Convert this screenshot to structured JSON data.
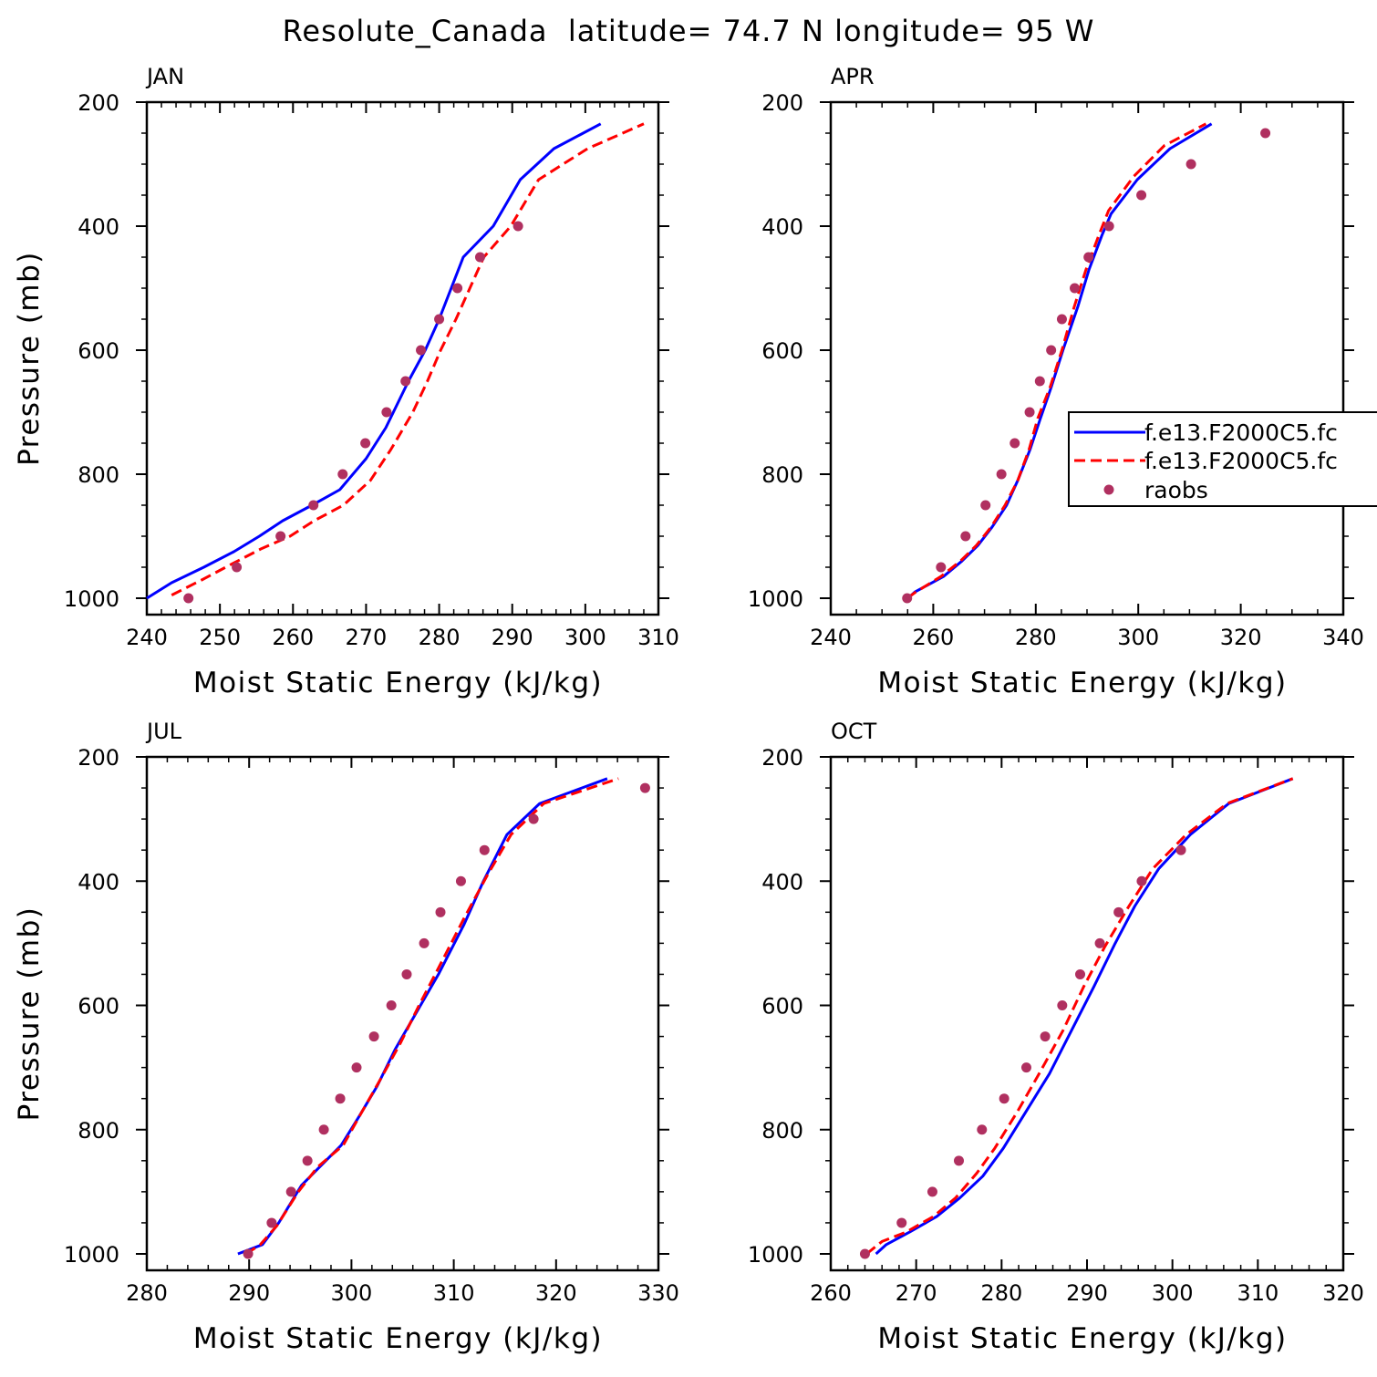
{
  "figure_title": "Resolute_Canada  latitude= 74.7 N longitude= 95 W",
  "colors": {
    "series1": "#0000ff",
    "series2": "#ff0000",
    "raobs": "#b03060"
  },
  "legend": {
    "entries": [
      "f.e13.F2000C5.fc",
      "f.e13.F2000C5.fc",
      "raobs"
    ],
    "placement": "right of APR panel, clipped by page edge"
  },
  "chart_data": [
    {
      "type": "line",
      "panel_label": "JAN",
      "xlabel": "Moist Static Energy (kJ/kg)",
      "ylabel": "Pressure (mb)",
      "xlim": [
        240,
        310
      ],
      "ylim": [
        1000,
        200
      ],
      "y_inverted": true,
      "xticks": [
        240,
        250,
        260,
        270,
        280,
        290,
        300,
        310
      ],
      "yticks": [
        200,
        400,
        600,
        800,
        1000
      ],
      "series": [
        {
          "style": "solid",
          "x": [
            240,
            243.4,
            247.8,
            251.9,
            255.4,
            258.6,
            262.6,
            266.4,
            270,
            272.7,
            275.8,
            278.1,
            280,
            283.3,
            287.4,
            291.1,
            295.7,
            302.1
          ],
          "y": [
            1000,
            975,
            950,
            925,
            900,
            875,
            850,
            825,
            775,
            725,
            650,
            600,
            550,
            450,
            400,
            325,
            275,
            235
          ]
        },
        {
          "style": "dashed",
          "x": [
            243.4,
            247.6,
            251.6,
            255.7,
            259.6,
            262.9,
            266.9,
            270.6,
            273.4,
            276.4,
            278.4,
            280.2,
            282.3,
            286.1,
            289.8,
            293.6,
            300.3,
            308
          ],
          "y": [
            995,
            970,
            945,
            920,
            900,
            875,
            850,
            810,
            760,
            700,
            650,
            600,
            550,
            450,
            400,
            325,
            275,
            235
          ]
        },
        {
          "style": "markers",
          "x": [
            245.7,
            252.3,
            258.3,
            262.8,
            266.8,
            269.9,
            272.8,
            275.4,
            277.5,
            280,
            282.5,
            285.6,
            290.8
          ],
          "y": [
            1000,
            950,
            900,
            850,
            800,
            750,
            700,
            650,
            600,
            550,
            500,
            450,
            400
          ]
        }
      ]
    },
    {
      "type": "line",
      "panel_label": "APR",
      "xlabel": "Moist Static Energy (kJ/kg)",
      "ylabel": "",
      "xlim": [
        240,
        340
      ],
      "ylim": [
        1000,
        200
      ],
      "y_inverted": true,
      "xticks": [
        240,
        260,
        280,
        300,
        320,
        340
      ],
      "yticks": [
        200,
        400,
        600,
        800,
        1000
      ],
      "series": [
        {
          "style": "solid",
          "x": [
            254.4,
            256.4,
            262,
            265.6,
            268.7,
            271.5,
            274.3,
            276.5,
            278.9,
            280.9,
            283,
            285.3,
            288.2,
            290.4,
            292.9,
            294.7,
            299.8,
            306.2,
            314.3
          ],
          "y": [
            1005,
            990,
            965,
            940,
            915,
            885,
            850,
            810,
            760,
            710,
            660,
            600,
            530,
            470,
            415,
            380,
            325,
            275,
            235
          ]
        },
        {
          "style": "dashed",
          "x": [
            254.9,
            256.6,
            261.5,
            265.3,
            268.4,
            271.3,
            274,
            276.5,
            278.7,
            280.4,
            282.8,
            285.1,
            287.5,
            289.8,
            292.3,
            294.2,
            299.1,
            305.1,
            313.2
          ],
          "y": [
            1000,
            990,
            965,
            940,
            915,
            885,
            850,
            810,
            760,
            710,
            660,
            600,
            530,
            470,
            415,
            375,
            320,
            270,
            235
          ]
        },
        {
          "style": "markers",
          "x": [
            254.9,
            261.5,
            266.3,
            270.2,
            273.3,
            275.9,
            278.8,
            280.8,
            283,
            285.1,
            287.6,
            290.3,
            294.3,
            300.6,
            310.3,
            324.8
          ],
          "y": [
            1000,
            950,
            900,
            850,
            800,
            750,
            700,
            650,
            600,
            550,
            500,
            450,
            400,
            350,
            300,
            250
          ]
        }
      ]
    },
    {
      "type": "line",
      "panel_label": "JUL",
      "xlabel": "Moist Static Energy (kJ/kg)",
      "ylabel": "Pressure (mb)",
      "xlim": [
        280,
        330
      ],
      "ylim": [
        1000,
        200
      ],
      "y_inverted": true,
      "xticks": [
        280,
        290,
        300,
        310,
        320,
        330
      ],
      "yticks": [
        200,
        400,
        600,
        800,
        1000
      ],
      "series": [
        {
          "style": "solid",
          "x": [
            288.9,
            291.3,
            292.9,
            295.1,
            296.9,
            299,
            300.7,
            302.5,
            304.3,
            306.4,
            308.5,
            311,
            312.9,
            315.2,
            318.4,
            325
          ],
          "y": [
            1000,
            985,
            950,
            890,
            860,
            825,
            780,
            730,
            670,
            610,
            550,
            470,
            400,
            325,
            275,
            235
          ]
        },
        {
          "style": "dashed",
          "x": [
            289.7,
            291.1,
            292.7,
            294.8,
            296.7,
            299.2,
            300.9,
            302.8,
            304.8,
            306.6,
            308.5,
            311,
            313.3,
            315.6,
            318.8,
            326.1
          ],
          "y": [
            1000,
            985,
            955,
            900,
            860,
            825,
            775,
            720,
            660,
            600,
            540,
            460,
            390,
            325,
            275,
            235
          ]
        },
        {
          "style": "markers",
          "x": [
            289.9,
            292.2,
            294.1,
            295.7,
            297.3,
            298.9,
            300.5,
            302.2,
            303.9,
            305.4,
            307.1,
            308.7,
            310.7,
            313,
            317.8,
            328.7
          ],
          "y": [
            1000,
            950,
            900,
            850,
            800,
            750,
            700,
            650,
            600,
            550,
            500,
            450,
            400,
            350,
            300,
            250
          ]
        }
      ]
    },
    {
      "type": "line",
      "panel_label": "OCT",
      "xlabel": "Moist Static Energy (kJ/kg)",
      "ylabel": "",
      "xlim": [
        260,
        320
      ],
      "ylim": [
        1000,
        200
      ],
      "y_inverted": true,
      "xticks": [
        260,
        270,
        280,
        290,
        300,
        310,
        320
      ],
      "yticks": [
        200,
        400,
        600,
        800,
        1000
      ],
      "series": [
        {
          "style": "solid",
          "x": [
            265.3,
            266.5,
            269.2,
            272.4,
            275.1,
            277.8,
            280.2,
            282.9,
            285.6,
            288.2,
            290.8,
            293.3,
            295.6,
            298.4,
            302.1,
            306.6,
            314.1
          ],
          "y": [
            1000,
            985,
            965,
            940,
            910,
            875,
            830,
            770,
            710,
            640,
            570,
            500,
            440,
            380,
            325,
            275,
            235
          ]
        },
        {
          "style": "dashed",
          "x": [
            264.2,
            266,
            268.8,
            272,
            274.6,
            277.1,
            279.2,
            281.9,
            284.4,
            287.2,
            289.6,
            292.1,
            294.7,
            297.7,
            301.6,
            306.4,
            314.1
          ],
          "y": [
            1000,
            980,
            965,
            940,
            910,
            870,
            830,
            770,
            710,
            640,
            570,
            505,
            445,
            380,
            325,
            275,
            235
          ]
        },
        {
          "style": "markers",
          "x": [
            264,
            268.3,
            271.9,
            275,
            277.7,
            280.3,
            282.9,
            285.1,
            287.1,
            289.2,
            291.5,
            293.7,
            296.4,
            301
          ],
          "y": [
            1000,
            950,
            900,
            850,
            800,
            750,
            700,
            650,
            600,
            550,
            500,
            450,
            400,
            350
          ]
        }
      ]
    }
  ]
}
